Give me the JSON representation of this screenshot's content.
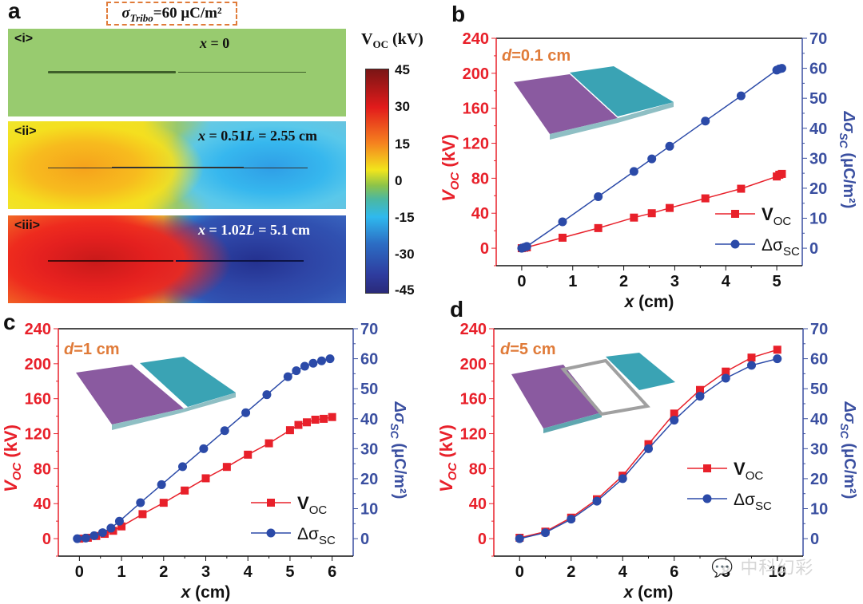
{
  "figure": {
    "panel_labels": [
      "a",
      "b",
      "c",
      "d"
    ],
    "tribo_box": {
      "symbol": "σ",
      "subscript": "Tribo",
      "value_text": "=60 μC/m²"
    },
    "watermark": "中科幻彩"
  },
  "panel_a": {
    "maps": [
      {
        "label": "<i>",
        "equation_var": "x",
        "equation_rest": " = 0",
        "state": "neutral"
      },
      {
        "label": "<ii>",
        "equation_var": "x",
        "equation_rest": " = 0.51",
        "equation_L": "L",
        "equation_tail": " = 2.55 cm",
        "state": "partial"
      },
      {
        "label": "<iii>",
        "equation_var": "x",
        "equation_rest": " = 1.02",
        "equation_L": "L",
        "equation_tail": " = 5.1 cm",
        "state": "full"
      }
    ],
    "colorbar": {
      "title_main": "V",
      "title_sub": "OC",
      "title_unit": " (kV)",
      "ticks": [
        "45",
        "30",
        "15",
        "0",
        "-15",
        "-30",
        "-45"
      ],
      "range": [
        -45,
        45
      ]
    }
  },
  "chart_data": [
    {
      "panel": "b",
      "type": "line",
      "annotation": {
        "var": "d",
        "text": "=0.1 cm",
        "color": "#e07b39"
      },
      "xlabel_var": "x",
      "xlabel_unit": " (cm)",
      "ylabel_left": "V_oc (kV)",
      "ylabel_right": "Δσ_sc (μC/m²)",
      "xlim": [
        -0.5,
        5.5
      ],
      "xticks": [
        0,
        1,
        2,
        3,
        4,
        5
      ],
      "ylim_left": [
        -20,
        240
      ],
      "yticks_left": [
        0,
        40,
        80,
        120,
        160,
        200,
        240
      ],
      "ylim_right": [
        -5.83,
        70
      ],
      "yticks_right": [
        0,
        10,
        20,
        30,
        40,
        50,
        60,
        70
      ],
      "legend": {
        "position": "right-center",
        "entries": [
          "V_oc",
          "Δσ_sc"
        ]
      },
      "series": [
        {
          "name": "V_oc",
          "axis": "left",
          "color": "#e8202a",
          "marker": "square",
          "x": [
            0,
            0.05,
            0.1,
            0.8,
            1.5,
            2.2,
            2.55,
            2.9,
            3.6,
            4.3,
            5.0,
            5.05,
            5.1
          ],
          "y": [
            0,
            0.5,
            1,
            12,
            23,
            35,
            40,
            46,
            57,
            68,
            82,
            84,
            85
          ]
        },
        {
          "name": "Δσ_sc",
          "axis": "right",
          "color": "#2b4aa8",
          "marker": "circle",
          "x": [
            0,
            0.05,
            0.1,
            0.8,
            1.5,
            2.2,
            2.55,
            2.9,
            3.6,
            4.3,
            5.0,
            5.05,
            5.1
          ],
          "y": [
            0,
            0.3,
            0.6,
            8.8,
            17.2,
            25.6,
            29.8,
            34,
            42.4,
            50.8,
            59.4,
            59.8,
            60
          ]
        }
      ]
    },
    {
      "panel": "c",
      "type": "line",
      "annotation": {
        "var": "d",
        "text": "=1 cm",
        "color": "#e07b39"
      },
      "xlabel_var": "x",
      "xlabel_unit": " (cm)",
      "ylabel_left": "V_oc (kV)",
      "ylabel_right": "Δσ_sc (μC/m²)",
      "xlim": [
        -0.5,
        6.5
      ],
      "xticks": [
        0,
        1,
        2,
        3,
        4,
        5,
        6
      ],
      "ylim_left": [
        -20,
        240
      ],
      "yticks_left": [
        0,
        40,
        80,
        120,
        160,
        200,
        240
      ],
      "ylim_right": [
        -5.83,
        70
      ],
      "yticks_right": [
        0,
        10,
        20,
        30,
        40,
        50,
        60,
        70
      ],
      "legend": {
        "position": "right-center",
        "entries": [
          "V_oc",
          "Δσ_sc"
        ]
      },
      "series": [
        {
          "name": "V_oc",
          "axis": "left",
          "color": "#e8202a",
          "marker": "square",
          "x": [
            0,
            0.2,
            0.4,
            0.6,
            0.8,
            1.0,
            1.5,
            2.0,
            2.5,
            3.0,
            3.5,
            4.0,
            4.5,
            5.0,
            5.2,
            5.4,
            5.6,
            5.8,
            6.0
          ],
          "y": [
            0,
            1,
            3,
            5.5,
            9,
            14,
            28,
            41,
            55,
            69,
            82,
            96,
            109,
            124,
            130,
            133,
            136,
            137,
            139
          ]
        },
        {
          "name": "Δσ_sc",
          "axis": "right",
          "color": "#2b4aa8",
          "marker": "circle",
          "x": [
            -0.05,
            0.15,
            0.35,
            0.55,
            0.75,
            0.95,
            1.45,
            1.95,
            2.45,
            2.95,
            3.45,
            3.95,
            4.45,
            4.95,
            5.15,
            5.35,
            5.55,
            5.75,
            5.95
          ],
          "y": [
            0,
            0.2,
            1,
            2,
            3.5,
            5.8,
            12,
            18,
            24,
            30,
            36,
            42,
            48,
            54,
            56,
            57.5,
            58.5,
            59.3,
            60
          ]
        }
      ]
    },
    {
      "panel": "d",
      "type": "line",
      "annotation": {
        "var": "d",
        "text": "=5 cm",
        "color": "#e07b39"
      },
      "xlabel_var": "x",
      "xlabel_unit": " (cm)",
      "ylabel_left": "V_oc (kV)",
      "ylabel_right": "Δσ_sc (μC/m²)",
      "xlim": [
        -1,
        11
      ],
      "xticks": [
        0,
        2,
        4,
        6,
        8,
        10
      ],
      "ylim_left": [
        -20,
        240
      ],
      "yticks_left": [
        0,
        40,
        80,
        120,
        160,
        200,
        240
      ],
      "ylim_right": [
        -5.83,
        70
      ],
      "yticks_right": [
        0,
        10,
        20,
        30,
        40,
        50,
        60,
        70
      ],
      "legend": {
        "position": "right-center",
        "entries": [
          "V_oc",
          "Δσ_sc"
        ]
      },
      "series": [
        {
          "name": "V_oc",
          "axis": "left",
          "color": "#e8202a",
          "marker": "square",
          "x": [
            0,
            1,
            2,
            3,
            4,
            5,
            6,
            7,
            8,
            9,
            10
          ],
          "y": [
            1,
            8,
            24,
            45,
            72,
            108,
            143,
            170,
            191,
            207,
            216
          ]
        },
        {
          "name": "Δσ_sc",
          "axis": "right",
          "color": "#2b4aa8",
          "marker": "circle",
          "x": [
            0,
            1,
            2,
            3,
            4,
            5,
            6,
            7,
            8,
            9,
            10
          ],
          "y": [
            0,
            2,
            6.5,
            12.5,
            20,
            30,
            39.5,
            47.5,
            53.5,
            57.8,
            60
          ]
        }
      ]
    }
  ]
}
